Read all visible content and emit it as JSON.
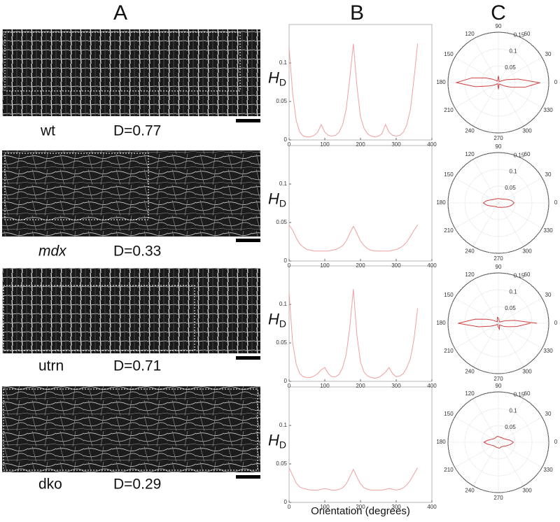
{
  "panels": {
    "a": "A",
    "b": "B",
    "c": "C"
  },
  "rows": [
    {
      "name": "wt",
      "d": "D=0.77"
    },
    {
      "name": "mdx",
      "d": "D=0.33"
    },
    {
      "name": "utrn",
      "d": "D=0.71"
    },
    {
      "name": "dko",
      "d": "D=0.29"
    }
  ],
  "chart_data": [
    {
      "type": "line",
      "y_label": "H",
      "y_label_sub": "D",
      "color": "#f0a0a0",
      "x": [
        0,
        10,
        20,
        30,
        40,
        50,
        60,
        70,
        80,
        90,
        100,
        110,
        120,
        130,
        140,
        150,
        160,
        170,
        180,
        190,
        200,
        210,
        220,
        230,
        240,
        250,
        260,
        270,
        280,
        290,
        300,
        310,
        320,
        330,
        340,
        350,
        360
      ],
      "values": [
        0.12,
        0.06,
        0.025,
        0.01,
        0.005,
        0.004,
        0.004,
        0.006,
        0.01,
        0.02,
        0.01,
        0.006,
        0.005,
        0.006,
        0.01,
        0.02,
        0.04,
        0.08,
        0.125,
        0.07,
        0.03,
        0.015,
        0.008,
        0.005,
        0.004,
        0.005,
        0.008,
        0.02,
        0.01,
        0.006,
        0.005,
        0.006,
        0.01,
        0.02,
        0.04,
        0.08,
        0.125
      ],
      "xlim": [
        0,
        400
      ],
      "xticks": [
        0,
        100,
        200,
        300,
        400
      ],
      "ylim": [
        0,
        0.15
      ],
      "yticks": [
        0,
        0.05,
        0.1
      ],
      "rlim": [
        0,
        0.15
      ],
      "rticks": [
        0.05,
        0.1,
        0.15
      ],
      "angle_ticks": [
        0,
        30,
        60,
        90,
        120,
        150,
        180,
        210,
        240,
        270,
        300,
        330
      ]
    },
    {
      "type": "line",
      "y_label": "H",
      "y_label_sub": "D",
      "color": "#f0a0a0",
      "x": [
        0,
        10,
        20,
        30,
        40,
        50,
        60,
        70,
        80,
        90,
        100,
        110,
        120,
        130,
        140,
        150,
        160,
        170,
        180,
        190,
        200,
        210,
        220,
        230,
        240,
        250,
        260,
        270,
        280,
        290,
        300,
        310,
        320,
        330,
        340,
        350,
        360
      ],
      "values": [
        0.047,
        0.04,
        0.03,
        0.022,
        0.018,
        0.015,
        0.014,
        0.013,
        0.013,
        0.013,
        0.013,
        0.013,
        0.014,
        0.015,
        0.017,
        0.02,
        0.026,
        0.036,
        0.045,
        0.036,
        0.026,
        0.02,
        0.016,
        0.014,
        0.013,
        0.013,
        0.013,
        0.013,
        0.013,
        0.014,
        0.015,
        0.017,
        0.02,
        0.025,
        0.032,
        0.04,
        0.047
      ],
      "xlim": [
        0,
        400
      ],
      "xticks": [
        0,
        100,
        200,
        300,
        400
      ],
      "ylim": [
        0,
        0.15
      ],
      "yticks": [
        0,
        0.05,
        0.1
      ],
      "rlim": [
        0,
        0.15
      ],
      "rticks": [
        0.05,
        0.1,
        0.15
      ],
      "angle_ticks": [
        0,
        30,
        60,
        90,
        120,
        150,
        180,
        210,
        240,
        270,
        300,
        330
      ]
    },
    {
      "type": "line",
      "y_label": "H",
      "y_label_sub": "D",
      "color": "#f0a0a0",
      "x": [
        0,
        10,
        20,
        30,
        40,
        50,
        60,
        70,
        80,
        90,
        100,
        110,
        120,
        130,
        140,
        150,
        160,
        170,
        180,
        190,
        200,
        210,
        220,
        230,
        240,
        250,
        260,
        270,
        280,
        290,
        300,
        310,
        320,
        330,
        340,
        350,
        360
      ],
      "values": [
        0.115,
        0.05,
        0.022,
        0.01,
        0.006,
        0.005,
        0.005,
        0.007,
        0.01,
        0.015,
        0.018,
        0.01,
        0.006,
        0.006,
        0.009,
        0.018,
        0.035,
        0.07,
        0.12,
        0.06,
        0.025,
        0.012,
        0.007,
        0.005,
        0.004,
        0.005,
        0.008,
        0.012,
        0.018,
        0.01,
        0.006,
        0.007,
        0.01,
        0.018,
        0.03,
        0.055,
        0.095
      ],
      "xlim": [
        0,
        400
      ],
      "xticks": [
        0,
        100,
        200,
        300,
        400
      ],
      "ylim": [
        0,
        0.15
      ],
      "yticks": [
        0,
        0.05,
        0.1
      ],
      "rlim": [
        0,
        0.15
      ],
      "rticks": [
        0.05,
        0.1,
        0.15
      ],
      "angle_ticks": [
        0,
        30,
        60,
        90,
        120,
        150,
        180,
        210,
        240,
        270,
        300,
        330
      ]
    },
    {
      "type": "line",
      "y_label": "H",
      "y_label_sub": "D",
      "color": "#f0a0a0",
      "x_label": "Orientation (degrees)",
      "x": [
        0,
        10,
        20,
        30,
        40,
        50,
        60,
        70,
        80,
        90,
        100,
        110,
        120,
        130,
        140,
        150,
        160,
        170,
        180,
        190,
        200,
        210,
        220,
        230,
        240,
        250,
        260,
        270,
        280,
        290,
        300,
        310,
        320,
        330,
        340,
        350,
        360
      ],
      "values": [
        0.045,
        0.035,
        0.025,
        0.02,
        0.018,
        0.017,
        0.016,
        0.016,
        0.016,
        0.017,
        0.018,
        0.017,
        0.016,
        0.016,
        0.017,
        0.019,
        0.024,
        0.033,
        0.043,
        0.033,
        0.024,
        0.019,
        0.017,
        0.016,
        0.016,
        0.016,
        0.016,
        0.017,
        0.018,
        0.017,
        0.016,
        0.017,
        0.019,
        0.023,
        0.029,
        0.037,
        0.045
      ],
      "xlim": [
        0,
        400
      ],
      "xticks": [
        0,
        100,
        200,
        300,
        400
      ],
      "ylim": [
        0,
        0.15
      ],
      "yticks": [
        0,
        0.05,
        0.1
      ],
      "rlim": [
        0,
        0.15
      ],
      "rticks": [
        0.05,
        0.1,
        0.15
      ],
      "angle_ticks": [
        0,
        30,
        60,
        90,
        120,
        150,
        180,
        210,
        240,
        270,
        300,
        330
      ]
    }
  ]
}
